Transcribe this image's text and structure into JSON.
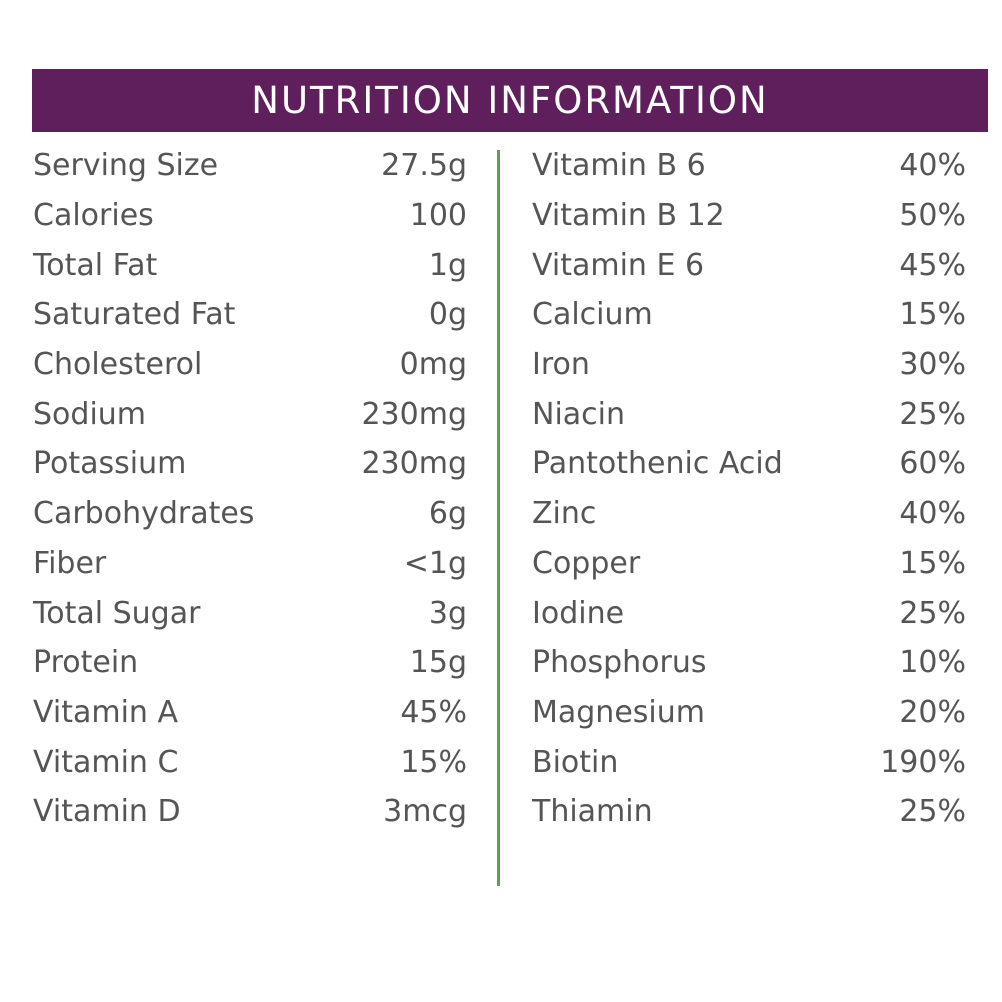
{
  "title": "NUTRITION INFORMATION",
  "colors": {
    "header": "#5e1f5c",
    "divider": "#5aa34a",
    "text": "#555555"
  },
  "left": [
    {
      "label": "Serving Size",
      "value": "27.5g"
    },
    {
      "label": "Calories",
      "value": "100"
    },
    {
      "label": "Total Fat",
      "value": "1g"
    },
    {
      "label": "Saturated Fat",
      "value": "0g"
    },
    {
      "label": "Cholesterol",
      "value": "0mg"
    },
    {
      "label": "Sodium",
      "value": "230mg"
    },
    {
      "label": "Potassium",
      "value": "230mg"
    },
    {
      "label": "Carbohydrates",
      "value": "6g"
    },
    {
      "label": "Fiber",
      "value": "<1g"
    },
    {
      "label": "Total Sugar",
      "value": "3g"
    },
    {
      "label": "Protein",
      "value": "15g"
    },
    {
      "label": "Vitamin A",
      "value": "45%"
    },
    {
      "label": "Vitamin C",
      "value": "15%"
    },
    {
      "label": "Vitamin D",
      "value": "3mcg"
    }
  ],
  "right": [
    {
      "label": "Vitamin B 6",
      "value": "40%"
    },
    {
      "label": "Vitamin B 12",
      "value": "50%"
    },
    {
      "label": "Vitamin E 6",
      "value": "45%"
    },
    {
      "label": "Calcium",
      "value": "15%"
    },
    {
      "label": "Iron",
      "value": "30%"
    },
    {
      "label": "Niacin",
      "value": "25%"
    },
    {
      "label": "Pantothenic Acid",
      "value": "60%"
    },
    {
      "label": "Zinc",
      "value": "40%"
    },
    {
      "label": "Copper",
      "value": "15%"
    },
    {
      "label": "Iodine",
      "value": "25%"
    },
    {
      "label": "Phosphorus",
      "value": "10%"
    },
    {
      "label": "Magnesium",
      "value": "20%"
    },
    {
      "label": "Biotin",
      "value": "190%"
    },
    {
      "label": "Thiamin",
      "value": "25%"
    }
  ]
}
